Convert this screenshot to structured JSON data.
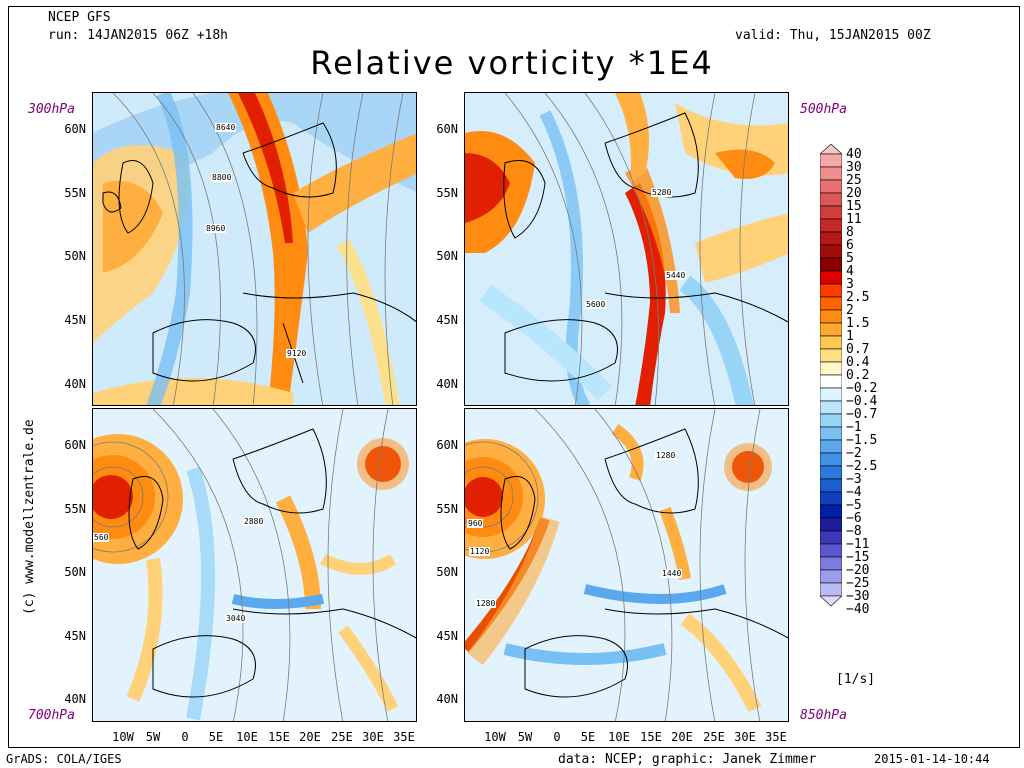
{
  "header": {
    "model": "NCEP GFS",
    "run": "run: 14JAN2015 06Z +18h",
    "valid": "valid: Thu, 15JAN2015 00Z",
    "title": "Relative vorticity *1E4"
  },
  "levels": {
    "top_left": "300hPa",
    "top_right": "500hPa",
    "bottom_left": "700hPa",
    "bottom_right": "850hPa"
  },
  "axes": {
    "top_lat_labels": [
      "60N",
      "55N",
      "50N",
      "45N",
      "40N"
    ],
    "bottom_lat_labels": [
      "60N",
      "55N",
      "50N",
      "45N",
      "40N"
    ],
    "lon_labels": [
      "10W",
      "5W",
      "0",
      "5E",
      "10E",
      "15E",
      "20E",
      "25E",
      "30E",
      "35E"
    ]
  },
  "contour_labels": {
    "p300": [
      "8640",
      "8800",
      "8960",
      "9120"
    ],
    "p500": [
      "5280",
      "5440",
      "5600"
    ],
    "p700": [
      "2880",
      "3040",
      "560"
    ],
    "p850": [
      "1280",
      "1440",
      "960",
      "1120",
      "1280"
    ]
  },
  "colorbar": {
    "labels": [
      "40",
      "30",
      "25",
      "20",
      "15",
      "11",
      "8",
      "6",
      "5",
      "4",
      "3",
      "2.5",
      "2",
      "1.5",
      "1",
      "0.7",
      "0.4",
      "0.2",
      "−0.2",
      "−0.4",
      "−0.7",
      "−1",
      "−1.5",
      "−2",
      "−2.5",
      "−3",
      "−4",
      "−5",
      "−6",
      "−8",
      "−11",
      "−15",
      "−20",
      "−25",
      "−30",
      "−40"
    ],
    "colors": [
      "#f8c8c8",
      "#f4a8a8",
      "#ef8c8c",
      "#e87070",
      "#de5656",
      "#d23c3c",
      "#c42828",
      "#b41818",
      "#a00c0c",
      "#8c0000",
      "#e00000",
      "#ff3c00",
      "#ff6400",
      "#ff8c10",
      "#ffa830",
      "#ffc850",
      "#ffe080",
      "#fff6c8",
      "#ffffff",
      "#dcf4ff",
      "#b8e6fc",
      "#98d4f8",
      "#78c0f4",
      "#5aa8ee",
      "#4090e6",
      "#2c78dc",
      "#1c5ed0",
      "#1040c0",
      "#0020a8",
      "#1c1c98",
      "#3a38b8",
      "#5a58d0",
      "#7c7ce0",
      "#9c9cec",
      "#bcbcf4",
      "#dcdcfa"
    ],
    "unit": "[1/s]"
  },
  "footer": {
    "left": "GrADS: COLA/IGES",
    "middle": "data: NCEP; graphic: Janek Zimmer",
    "right": "2015-01-14-10:44"
  },
  "vertical_text": "(c) www.modellzentrale.de"
}
